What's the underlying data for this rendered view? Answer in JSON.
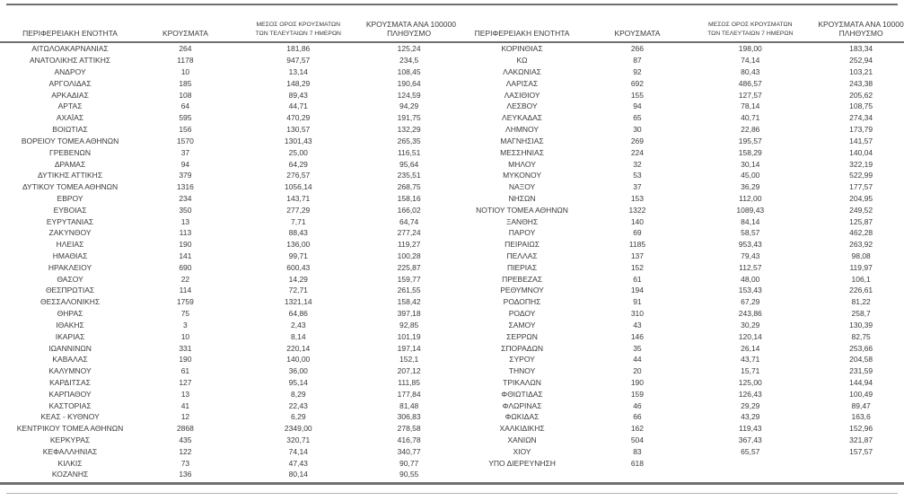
{
  "colors": {
    "text": "#3a3a3a",
    "rule_dark": "#6f6f6f",
    "rule_light": "#b3b3b3",
    "bg": "#ffffff"
  },
  "header": {
    "region": "ΠΕΡΙΦΕΡΕΙΑΚΗ ΕΝΟΤΗΤΑ",
    "cases": "ΚΡΟΥΣΜΑΤΑ",
    "avg7_line1": "ΜΕΣΟΣ ΟΡΟΣ ΚΡΟΥΣΜΑΤΩΝ",
    "avg7_line2": "ΤΩΝ ΤΕΛΕΥΤΑΙΩΝ 7 ΗΜΕΡΩΝ",
    "per100k_line1": "ΚΡΟΥΣΜΑΤΑ ΑΝΑ 100000",
    "per100k_line2": "ΠΛΗΘΥΣΜΟ"
  },
  "tables": [
    {
      "rows": [
        [
          "ΑΙΤΩΛΟΑΚΑΡΝΑΝΙΑΣ",
          "264",
          "181,86",
          "125,24"
        ],
        [
          "ΑΝΑΤΟΛΙΚΗΣ ΑΤΤΙΚΗΣ",
          "1178",
          "947,57",
          "234,5"
        ],
        [
          "ΑΝΔΡΟΥ",
          "10",
          "13,14",
          "108,45"
        ],
        [
          "ΑΡΓΟΛΙΔΑΣ",
          "185",
          "148,29",
          "190,64"
        ],
        [
          "ΑΡΚΑΔΙΑΣ",
          "108",
          "89,43",
          "124,59"
        ],
        [
          "ΑΡΤΑΣ",
          "64",
          "44,71",
          "94,29"
        ],
        [
          "ΑΧΑΪΑΣ",
          "595",
          "470,29",
          "191,75"
        ],
        [
          "ΒΟΙΩΤΙΑΣ",
          "156",
          "130,57",
          "132,29"
        ],
        [
          "ΒΟΡΕΙΟΥ ΤΟΜΕΑ ΑΘΗΝΩΝ",
          "1570",
          "1301,43",
          "265,35"
        ],
        [
          "ΓΡΕΒΕΝΩΝ",
          "37",
          "25,00",
          "116,51"
        ],
        [
          "ΔΡΑΜΑΣ",
          "94",
          "64,29",
          "95,64"
        ],
        [
          "ΔΥΤΙΚΗΣ ΑΤΤΙΚΗΣ",
          "379",
          "276,57",
          "235,51"
        ],
        [
          "ΔΥΤΙΚΟΥ ΤΟΜΕΑ ΑΘΗΝΩΝ",
          "1316",
          "1056,14",
          "268,75"
        ],
        [
          "ΕΒΡΟΥ",
          "234",
          "143,71",
          "158,16"
        ],
        [
          "ΕΥΒΟΙΑΣ",
          "350",
          "277,29",
          "166,02"
        ],
        [
          "ΕΥΡΥΤΑΝΙΑΣ",
          "13",
          "7,71",
          "64,74"
        ],
        [
          "ΖΑΚΥΝΘΟΥ",
          "113",
          "88,43",
          "277,24"
        ],
        [
          "ΗΛΕΙΑΣ",
          "190",
          "136,00",
          "119,27"
        ],
        [
          "ΗΜΑΘΙΑΣ",
          "141",
          "99,71",
          "100,28"
        ],
        [
          "ΗΡΑΚΛΕΙΟΥ",
          "690",
          "600,43",
          "225,87"
        ],
        [
          "ΘΑΣΟΥ",
          "22",
          "14,29",
          "159,77"
        ],
        [
          "ΘΕΣΠΡΩΤΙΑΣ",
          "114",
          "72,71",
          "261,55"
        ],
        [
          "ΘΕΣΣΑΛΟΝΙΚΗΣ",
          "1759",
          "1321,14",
          "158,42"
        ],
        [
          "ΘΗΡΑΣ",
          "75",
          "64,86",
          "397,18"
        ],
        [
          "ΙΘΑΚΗΣ",
          "3",
          "2,43",
          "92,85"
        ],
        [
          "ΙΚΑΡΙΑΣ",
          "10",
          "8,14",
          "101,19"
        ],
        [
          "ΙΩΑΝΝΙΝΩΝ",
          "331",
          "220,14",
          "197,14"
        ],
        [
          "ΚΑΒΑΛΑΣ",
          "190",
          "140,00",
          "152,1"
        ],
        [
          "ΚΑΛΥΜΝΟΥ",
          "61",
          "36,00",
          "207,12"
        ],
        [
          "ΚΑΡΔΙΤΣΑΣ",
          "127",
          "95,14",
          "111,85"
        ],
        [
          "ΚΑΡΠΑΘΟΥ",
          "13",
          "8,29",
          "177,84"
        ],
        [
          "ΚΑΣΤΟΡΙΑΣ",
          "41",
          "22,43",
          "81,48"
        ],
        [
          "ΚΕΑΣ - ΚΥΘΝΟΥ",
          "12",
          "6,29",
          "306,83"
        ],
        [
          "ΚΕΝΤΡΙΚΟΥ ΤΟΜΕΑ ΑΘΗΝΩΝ",
          "2868",
          "2349,00",
          "278,58"
        ],
        [
          "ΚΕΡΚΥΡΑΣ",
          "435",
          "320,71",
          "416,78"
        ],
        [
          "ΚΕΦΑΛΛΗΝΙΑΣ",
          "122",
          "74,14",
          "340,77"
        ],
        [
          "ΚΙΛΚΙΣ",
          "73",
          "47,43",
          "90,77"
        ],
        [
          "ΚΟΖΑΝΗΣ",
          "136",
          "80,14",
          "90,55"
        ]
      ]
    },
    {
      "rows": [
        [
          "ΚΟΡΙΝΘΙΑΣ",
          "266",
          "198,00",
          "183,34"
        ],
        [
          "ΚΩ",
          "87",
          "74,14",
          "252,94"
        ],
        [
          "ΛΑΚΩΝΙΑΣ",
          "92",
          "80,43",
          "103,21"
        ],
        [
          "ΛΑΡΙΣΑΣ",
          "692",
          "486,57",
          "243,38"
        ],
        [
          "ΛΑΣΙΘΙΟΥ",
          "155",
          "127,57",
          "205,62"
        ],
        [
          "ΛΕΣΒΟΥ",
          "94",
          "78,14",
          "108,75"
        ],
        [
          "ΛΕΥΚΑΔΑΣ",
          "65",
          "40,71",
          "274,34"
        ],
        [
          "ΛΗΜΝΟΥ",
          "30",
          "22,86",
          "173,79"
        ],
        [
          "ΜΑΓΝΗΣΙΑΣ",
          "269",
          "195,57",
          "141,57"
        ],
        [
          "ΜΕΣΣΗΝΙΑΣ",
          "224",
          "158,29",
          "140,04"
        ],
        [
          "ΜΗΛΟΥ",
          "32",
          "30,14",
          "322,19"
        ],
        [
          "ΜΥΚΟΝΟΥ",
          "53",
          "45,00",
          "522,99"
        ],
        [
          "ΝΑΞΟΥ",
          "37",
          "36,29",
          "177,57"
        ],
        [
          "ΝΗΣΩΝ",
          "153",
          "112,00",
          "204,95"
        ],
        [
          "ΝΟΤΙΟΥ ΤΟΜΕΑ ΑΘΗΝΩΝ",
          "1322",
          "1089,43",
          "249,52"
        ],
        [
          "ΞΑΝΘΗΣ",
          "140",
          "84,14",
          "125,87"
        ],
        [
          "ΠΑΡΟΥ",
          "69",
          "58,57",
          "462,28"
        ],
        [
          "ΠΕΙΡΑΙΩΣ",
          "1185",
          "953,43",
          "263,92"
        ],
        [
          "ΠΕΛΛΑΣ",
          "137",
          "79,43",
          "98,08"
        ],
        [
          "ΠΙΕΡΙΑΣ",
          "152",
          "112,57",
          "119,97"
        ],
        [
          "ΠΡΕΒΕΖΑΣ",
          "61",
          "48,00",
          "106,1"
        ],
        [
          "ΡΕΘΥΜΝΟΥ",
          "194",
          "153,43",
          "226,61"
        ],
        [
          "ΡΟΔΟΠΗΣ",
          "91",
          "67,29",
          "81,22"
        ],
        [
          "ΡΟΔΟΥ",
          "310",
          "243,86",
          "258,7"
        ],
        [
          "ΣΑΜΟΥ",
          "43",
          "30,29",
          "130,39"
        ],
        [
          "ΣΕΡΡΩΝ",
          "146",
          "120,14",
          "82,75"
        ],
        [
          "ΣΠΟΡΑΔΩΝ",
          "35",
          "26,14",
          "253,66"
        ],
        [
          "ΣΥΡΟΥ",
          "44",
          "43,71",
          "204,58"
        ],
        [
          "ΤΗΝΟΥ",
          "20",
          "15,71",
          "231,59"
        ],
        [
          "ΤΡΙΚΑΛΩΝ",
          "190",
          "125,00",
          "144,94"
        ],
        [
          "ΦΘΙΩΤΙΔΑΣ",
          "159",
          "126,43",
          "100,49"
        ],
        [
          "ΦΛΩΡΙΝΑΣ",
          "46",
          "29,29",
          "89,47"
        ],
        [
          "ΦΩΚΙΔΑΣ",
          "66",
          "43,29",
          "163,6"
        ],
        [
          "ΧΑΛΚΙΔΙΚΗΣ",
          "162",
          "119,43",
          "152,96"
        ],
        [
          "ΧΑΝΙΩΝ",
          "504",
          "367,43",
          "321,87"
        ],
        [
          "ΧΙΟΥ",
          "83",
          "65,57",
          "157,57"
        ],
        [
          "ΥΠΟ ΔΙΕΡΕΥΝΗΣΗ",
          "618",
          "",
          ""
        ]
      ]
    }
  ]
}
